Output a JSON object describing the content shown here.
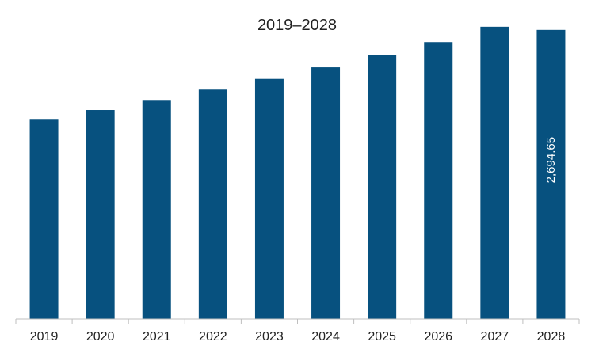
{
  "chart_data": {
    "type": "bar",
    "title": "2019–2028",
    "xlabel": "",
    "ylabel": "",
    "categories": [
      "2019",
      "2020",
      "2021",
      "2022",
      "2023",
      "2024",
      "2025",
      "2026",
      "2027",
      "2028"
    ],
    "values": [
      1865,
      1948,
      2042,
      2138,
      2238,
      2346,
      2460,
      2581,
      2724,
      2694.65
    ],
    "data_labels": [
      {
        "index": 9,
        "text": "2,694.65"
      }
    ],
    "ylim": [
      0,
      2900
    ],
    "grid": false,
    "legend": "none",
    "bar_color": "#07517f"
  }
}
